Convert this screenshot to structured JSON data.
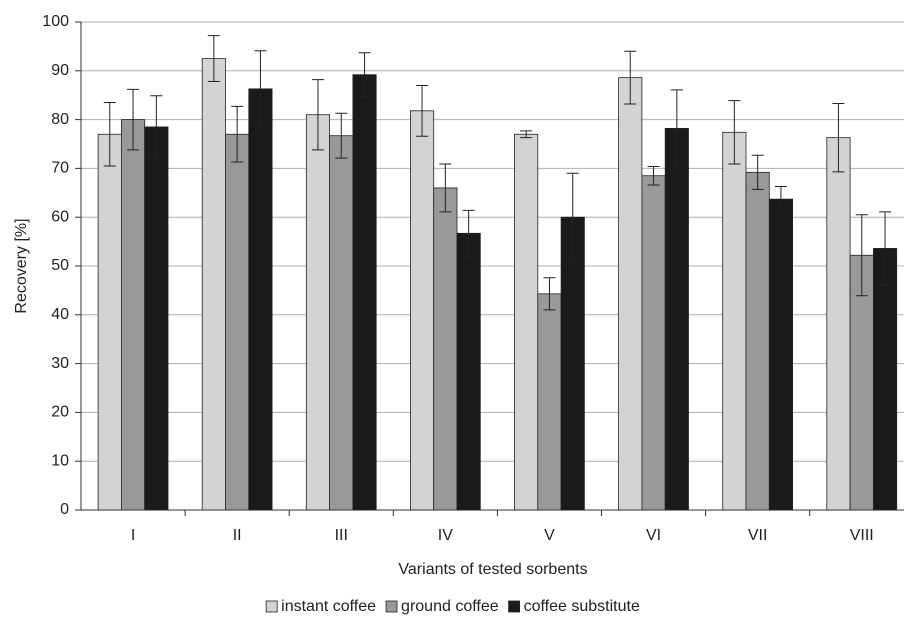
{
  "chart_data": {
    "type": "bar",
    "y_label": "Recovery [%]",
    "x_label": "Variants of tested sorbents",
    "categories": [
      "I",
      "II",
      "III",
      "IV",
      "V",
      "VI",
      "VII",
      "VIII"
    ],
    "series": [
      {
        "name": "instant coffee",
        "color": "#d3d3d3",
        "values": [
          77,
          92.5,
          81,
          81.8,
          77,
          88.6,
          77.4,
          76.3
        ],
        "errors": [
          6.5,
          4.7,
          7.2,
          5.2,
          0.7,
          5.4,
          6.5,
          7
        ]
      },
      {
        "name": "ground coffee",
        "color": "#999999",
        "values": [
          80,
          77,
          76.7,
          66,
          44.3,
          68.5,
          69.2,
          52.2
        ],
        "errors": [
          6.2,
          5.7,
          4.6,
          4.9,
          3.3,
          1.9,
          3.5,
          8.3
        ]
      },
      {
        "name": "coffee substitute",
        "color": "#1a1a1a",
        "values": [
          78.5,
          86.3,
          89.2,
          56.7,
          60,
          78.2,
          63.7,
          53.6
        ],
        "errors": [
          6.4,
          7.8,
          4.5,
          4.7,
          9,
          7.9,
          2.6,
          7.5
        ]
      }
    ],
    "ylim": [
      0,
      100
    ],
    "yticks": [
      0,
      10,
      20,
      30,
      40,
      50,
      60,
      70,
      80,
      90,
      100
    ],
    "grid": true,
    "legend": "bottom"
  }
}
